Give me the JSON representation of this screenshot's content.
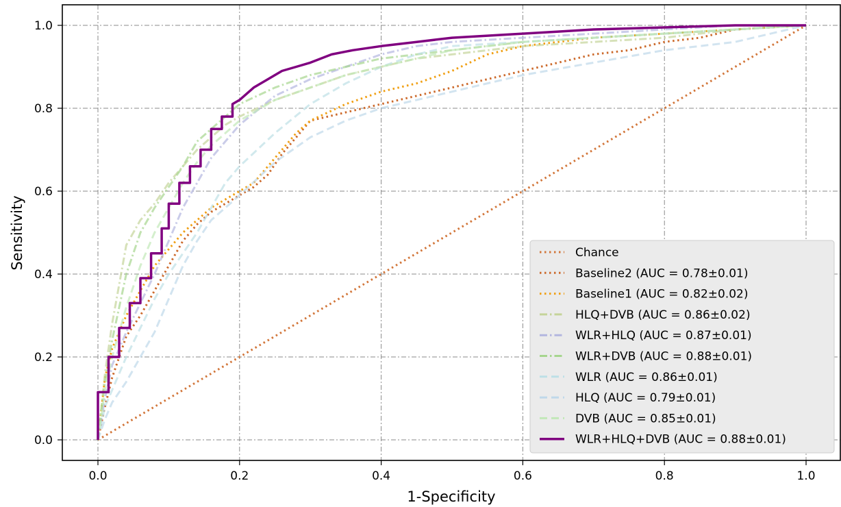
{
  "chart_data": {
    "type": "line",
    "title": "",
    "xlabel": "1-Specificity",
    "ylabel": "Sensitivity",
    "xlim": [
      -0.05,
      1.05
    ],
    "ylim": [
      -0.05,
      1.05
    ],
    "xticks": [
      "0.0",
      "0.2",
      "0.4",
      "0.6",
      "0.8",
      "1.0"
    ],
    "yticks": [
      "0.0",
      "0.2",
      "0.4",
      "0.6",
      "0.8",
      "1.0"
    ],
    "grid": true,
    "legend_position": "lower-right",
    "series": [
      {
        "name": "Chance",
        "color": "#d2763a",
        "style": "dotted",
        "x": [
          0,
          1
        ],
        "y": [
          0,
          1
        ]
      },
      {
        "name": "Baseline2 (AUC = 0.78±0.01)",
        "color": "#cc6a2c",
        "style": "dotted",
        "x": [
          0,
          0.01,
          0.02,
          0.04,
          0.06,
          0.08,
          0.1,
          0.12,
          0.14,
          0.16,
          0.18,
          0.2,
          0.22,
          0.24,
          0.26,
          0.28,
          0.3,
          0.35,
          0.4,
          0.45,
          0.5,
          0.55,
          0.6,
          0.65,
          0.7,
          0.75,
          0.8,
          0.85,
          0.9,
          1.0
        ],
        "y": [
          0,
          0.08,
          0.15,
          0.25,
          0.3,
          0.36,
          0.42,
          0.48,
          0.52,
          0.55,
          0.57,
          0.59,
          0.61,
          0.64,
          0.69,
          0.73,
          0.77,
          0.79,
          0.81,
          0.83,
          0.85,
          0.87,
          0.89,
          0.91,
          0.93,
          0.94,
          0.96,
          0.97,
          0.99,
          1.0
        ]
      },
      {
        "name": "Baseline1 (AUC = 0.82±0.02)",
        "color": "#f0a015",
        "style": "dotted",
        "x": [
          0,
          0.01,
          0.02,
          0.04,
          0.06,
          0.08,
          0.1,
          0.12,
          0.14,
          0.16,
          0.18,
          0.2,
          0.22,
          0.24,
          0.26,
          0.28,
          0.3,
          0.35,
          0.4,
          0.45,
          0.5,
          0.55,
          0.6,
          0.65,
          0.7,
          0.8,
          0.9,
          1.0
        ],
        "y": [
          0,
          0.15,
          0.22,
          0.3,
          0.36,
          0.42,
          0.46,
          0.5,
          0.53,
          0.56,
          0.58,
          0.6,
          0.62,
          0.66,
          0.7,
          0.74,
          0.77,
          0.81,
          0.84,
          0.86,
          0.89,
          0.93,
          0.95,
          0.96,
          0.97,
          0.98,
          0.99,
          1.0
        ]
      },
      {
        "name": "HLQ+DVB (AUC = 0.86±0.02)",
        "color": "#c5d49a",
        "style": "dashdot",
        "x": [
          0,
          0.01,
          0.02,
          0.04,
          0.06,
          0.08,
          0.1,
          0.12,
          0.14,
          0.16,
          0.18,
          0.2,
          0.25,
          0.3,
          0.35,
          0.4,
          0.45,
          0.5,
          0.6,
          0.7,
          0.8,
          0.9,
          1.0
        ],
        "y": [
          0,
          0.16,
          0.28,
          0.47,
          0.53,
          0.57,
          0.62,
          0.66,
          0.7,
          0.73,
          0.76,
          0.78,
          0.82,
          0.85,
          0.88,
          0.9,
          0.92,
          0.93,
          0.95,
          0.96,
          0.97,
          0.99,
          1.0
        ]
      },
      {
        "name": "WLR+HLQ (AUC = 0.87±0.01)",
        "color": "#b3b6df",
        "style": "dashdot",
        "x": [
          0,
          0.01,
          0.02,
          0.04,
          0.06,
          0.08,
          0.1,
          0.12,
          0.14,
          0.16,
          0.18,
          0.2,
          0.25,
          0.3,
          0.35,
          0.4,
          0.45,
          0.5,
          0.6,
          0.7,
          0.8,
          0.9,
          1.0
        ],
        "y": [
          0,
          0.1,
          0.18,
          0.26,
          0.33,
          0.4,
          0.48,
          0.56,
          0.62,
          0.68,
          0.72,
          0.76,
          0.83,
          0.87,
          0.9,
          0.93,
          0.95,
          0.96,
          0.97,
          0.98,
          0.99,
          1.0,
          1.0
        ]
      },
      {
        "name": "WLR+DVB (AUC = 0.88±0.01)",
        "color": "#a6d58e",
        "style": "dashdot",
        "x": [
          0,
          0.01,
          0.02,
          0.04,
          0.06,
          0.08,
          0.1,
          0.12,
          0.14,
          0.16,
          0.18,
          0.2,
          0.25,
          0.3,
          0.35,
          0.4,
          0.45,
          0.5,
          0.6,
          0.7,
          0.8,
          0.9,
          1.0
        ],
        "y": [
          0,
          0.14,
          0.24,
          0.4,
          0.5,
          0.56,
          0.61,
          0.66,
          0.72,
          0.75,
          0.78,
          0.81,
          0.85,
          0.88,
          0.9,
          0.92,
          0.93,
          0.94,
          0.96,
          0.97,
          0.98,
          0.99,
          1.0
        ]
      },
      {
        "name": "WLR (AUC = 0.86±0.01)",
        "color": "#bde0e6",
        "style": "dashed",
        "x": [
          0,
          0.01,
          0.02,
          0.04,
          0.06,
          0.08,
          0.1,
          0.12,
          0.14,
          0.16,
          0.18,
          0.2,
          0.25,
          0.3,
          0.35,
          0.4,
          0.45,
          0.5,
          0.6,
          0.7,
          0.8,
          0.9,
          1.0
        ],
        "y": [
          0,
          0.08,
          0.12,
          0.2,
          0.27,
          0.34,
          0.4,
          0.45,
          0.5,
          0.56,
          0.62,
          0.66,
          0.74,
          0.81,
          0.86,
          0.9,
          0.93,
          0.95,
          0.96,
          0.97,
          0.98,
          0.99,
          1.0
        ]
      },
      {
        "name": "HLQ (AUC = 0.79±0.01)",
        "color": "#bfd8ea",
        "style": "dashed",
        "x": [
          0,
          0.01,
          0.02,
          0.04,
          0.06,
          0.08,
          0.1,
          0.12,
          0.14,
          0.16,
          0.18,
          0.2,
          0.25,
          0.3,
          0.35,
          0.4,
          0.45,
          0.5,
          0.6,
          0.7,
          0.8,
          0.9,
          1.0
        ],
        "y": [
          0,
          0.05,
          0.09,
          0.14,
          0.2,
          0.26,
          0.34,
          0.42,
          0.48,
          0.53,
          0.56,
          0.59,
          0.67,
          0.73,
          0.77,
          0.8,
          0.82,
          0.84,
          0.88,
          0.91,
          0.94,
          0.96,
          1.0
        ]
      },
      {
        "name": "DVB (AUC = 0.85±0.01)",
        "color": "#c2e8b8",
        "style": "dashed",
        "x": [
          0,
          0.01,
          0.02,
          0.04,
          0.06,
          0.08,
          0.1,
          0.12,
          0.14,
          0.16,
          0.18,
          0.2,
          0.25,
          0.3,
          0.35,
          0.4,
          0.45,
          0.5,
          0.6,
          0.7,
          0.8,
          0.9,
          1.0
        ],
        "y": [
          0,
          0.12,
          0.2,
          0.32,
          0.42,
          0.5,
          0.56,
          0.62,
          0.67,
          0.71,
          0.74,
          0.77,
          0.82,
          0.85,
          0.88,
          0.9,
          0.92,
          0.94,
          0.96,
          0.97,
          0.98,
          0.99,
          1.0
        ]
      },
      {
        "name": "WLR+HLQ+DVB (AUC = 0.88±0.01)",
        "color": "#800080",
        "style": "solid",
        "x": [
          0,
          0.0,
          0.015,
          0.015,
          0.03,
          0.03,
          0.045,
          0.045,
          0.06,
          0.06,
          0.075,
          0.075,
          0.09,
          0.09,
          0.1,
          0.1,
          0.115,
          0.115,
          0.13,
          0.13,
          0.145,
          0.145,
          0.16,
          0.16,
          0.175,
          0.175,
          0.19,
          0.19,
          0.2,
          0.22,
          0.24,
          0.26,
          0.28,
          0.3,
          0.33,
          0.36,
          0.4,
          0.45,
          0.5,
          0.55,
          0.6,
          0.65,
          0.7,
          0.8,
          0.9,
          1.0
        ],
        "y": [
          0,
          0.115,
          0.115,
          0.2,
          0.2,
          0.27,
          0.27,
          0.33,
          0.33,
          0.39,
          0.39,
          0.45,
          0.45,
          0.51,
          0.51,
          0.57,
          0.57,
          0.62,
          0.62,
          0.66,
          0.66,
          0.7,
          0.7,
          0.75,
          0.75,
          0.78,
          0.78,
          0.81,
          0.82,
          0.85,
          0.87,
          0.89,
          0.9,
          0.91,
          0.93,
          0.94,
          0.95,
          0.96,
          0.97,
          0.975,
          0.98,
          0.985,
          0.99,
          0.995,
          1.0,
          1.0
        ]
      }
    ]
  }
}
